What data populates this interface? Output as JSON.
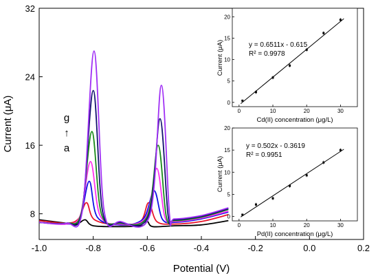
{
  "chart_data": [
    {
      "type": "line",
      "xlabel": "Potential (V)",
      "ylabel": "Current (μA)",
      "xlim": [
        -1.0,
        0.2
      ],
      "ylim": [
        5,
        32
      ],
      "xticks": [
        "-1.0",
        "-0.8",
        "-0.6",
        "-0.4",
        "-0.2",
        "0.0",
        "0.2"
      ],
      "yticks": [
        "8",
        "16",
        "24",
        "32"
      ],
      "annotation": {
        "top": "g",
        "arrow": "↑",
        "bottom": "a"
      },
      "grid": false,
      "series": [
        {
          "color": "#000000",
          "values": [
            [
              -1.0,
              7.3
            ],
            [
              -0.9,
              6.9
            ],
            [
              -0.86,
              6.8
            ],
            [
              -0.83,
              7.3
            ],
            [
              -0.8,
              6.6
            ],
            [
              -0.7,
              6.5
            ],
            [
              -0.62,
              6.6
            ],
            [
              -0.6,
              7.1
            ],
            [
              -0.58,
              6.5
            ],
            [
              -0.5,
              6.6
            ],
            [
              -0.4,
              6.7
            ],
            [
              -0.3,
              7.2
            ]
          ]
        },
        {
          "color": "#e8142a",
          "values": [
            [
              -1.0,
              7.2
            ],
            [
              -0.9,
              6.9
            ],
            [
              -0.855,
              7.4
            ],
            [
              -0.825,
              9.3
            ],
            [
              -0.795,
              7.3
            ],
            [
              -0.7,
              6.7
            ],
            [
              -0.625,
              7.1
            ],
            [
              -0.595,
              9.3
            ],
            [
              -0.565,
              7.1
            ],
            [
              -0.5,
              6.8
            ],
            [
              -0.4,
              7.1
            ],
            [
              -0.3,
              7.9
            ]
          ]
        },
        {
          "color": "#1010e6",
          "values": [
            [
              -1.0,
              7.0
            ],
            [
              -0.9,
              6.8
            ],
            [
              -0.85,
              7.4
            ],
            [
              -0.815,
              11.8
            ],
            [
              -0.785,
              7.6
            ],
            [
              -0.7,
              6.7
            ],
            [
              -0.615,
              7.4
            ],
            [
              -0.575,
              10.7
            ],
            [
              -0.545,
              7.4
            ],
            [
              -0.5,
              7.0
            ],
            [
              -0.4,
              7.4
            ],
            [
              -0.3,
              8.2
            ]
          ]
        },
        {
          "color": "#ff33ee",
          "values": [
            [
              -1.0,
              7.0
            ],
            [
              -0.9,
              6.8
            ],
            [
              -0.848,
              7.8
            ],
            [
              -0.81,
              14.1
            ],
            [
              -0.775,
              7.8
            ],
            [
              -0.7,
              6.8
            ],
            [
              -0.605,
              7.6
            ],
            [
              -0.565,
              13.3
            ],
            [
              -0.535,
              7.6
            ],
            [
              -0.5,
              7.1
            ],
            [
              -0.4,
              7.5
            ],
            [
              -0.3,
              8.3
            ]
          ]
        },
        {
          "color": "#1a8a1a",
          "values": [
            [
              -1.0,
              7.0
            ],
            [
              -0.9,
              6.9
            ],
            [
              -0.845,
              8.0
            ],
            [
              -0.805,
              17.6
            ],
            [
              -0.77,
              8.0
            ],
            [
              -0.7,
              6.9
            ],
            [
              -0.6,
              7.7
            ],
            [
              -0.56,
              16.0
            ],
            [
              -0.53,
              7.7
            ],
            [
              -0.5,
              7.2
            ],
            [
              -0.4,
              7.6
            ],
            [
              -0.3,
              8.5
            ]
          ]
        },
        {
          "color": "#12126e",
          "values": [
            [
              -1.0,
              7.0
            ],
            [
              -0.9,
              6.9
            ],
            [
              -0.842,
              8.2
            ],
            [
              -0.8,
              22.4
            ],
            [
              -0.765,
              8.2
            ],
            [
              -0.7,
              7.0
            ],
            [
              -0.595,
              7.8
            ],
            [
              -0.553,
              19.1
            ],
            [
              -0.523,
              7.8
            ],
            [
              -0.5,
              7.3
            ],
            [
              -0.4,
              7.7
            ],
            [
              -0.3,
              8.6
            ]
          ]
        },
        {
          "color": "#a030f5",
          "values": [
            [
              -1.0,
              7.0
            ],
            [
              -0.9,
              6.9
            ],
            [
              -0.84,
              8.4
            ],
            [
              -0.797,
              27.0
            ],
            [
              -0.76,
              8.4
            ],
            [
              -0.7,
              7.1
            ],
            [
              -0.59,
              7.9
            ],
            [
              -0.548,
              23.0
            ],
            [
              -0.518,
              7.9
            ],
            [
              -0.5,
              7.4
            ],
            [
              -0.4,
              7.8
            ],
            [
              -0.3,
              8.7
            ]
          ]
        }
      ]
    },
    {
      "type": "scatter",
      "xlabel": "Cd(II) concentration (μg/L)",
      "ylabel": "Current (μA)",
      "xlim": [
        -2,
        35
      ],
      "ylim": [
        -1,
        22
      ],
      "xticks": [
        "0",
        "10",
        "20",
        "30"
      ],
      "yticks": [
        "0",
        "5",
        "10",
        "15",
        "20"
      ],
      "equation": "y = 0.6511x - 0.615",
      "r2": "R² = 0.9978",
      "x": [
        1,
        5,
        10,
        15,
        20,
        25,
        30
      ],
      "y": [
        0.4,
        2.4,
        5.8,
        8.6,
        12.3,
        16.2,
        19.3
      ],
      "fit": {
        "slope": 0.6511,
        "intercept": -0.615
      }
    },
    {
      "type": "scatter",
      "xlabel": "Pd(II) concentration (μg/L)",
      "ylabel": "Current (μA)",
      "xlim": [
        -2,
        35
      ],
      "ylim": [
        -1,
        20
      ],
      "xticks": [
        "0",
        "10",
        "20",
        "30"
      ],
      "yticks": [
        "0",
        "5",
        "10",
        "15",
        "20"
      ],
      "equation": "y = 0.502x - 0.3619",
      "r2": "R² = 0.9951",
      "x": [
        1,
        5,
        10,
        15,
        20,
        25,
        30
      ],
      "y": [
        0.4,
        2.7,
        4.1,
        6.9,
        9.3,
        12.2,
        15.0
      ],
      "fit": {
        "slope": 0.502,
        "intercept": -0.3619
      }
    }
  ]
}
